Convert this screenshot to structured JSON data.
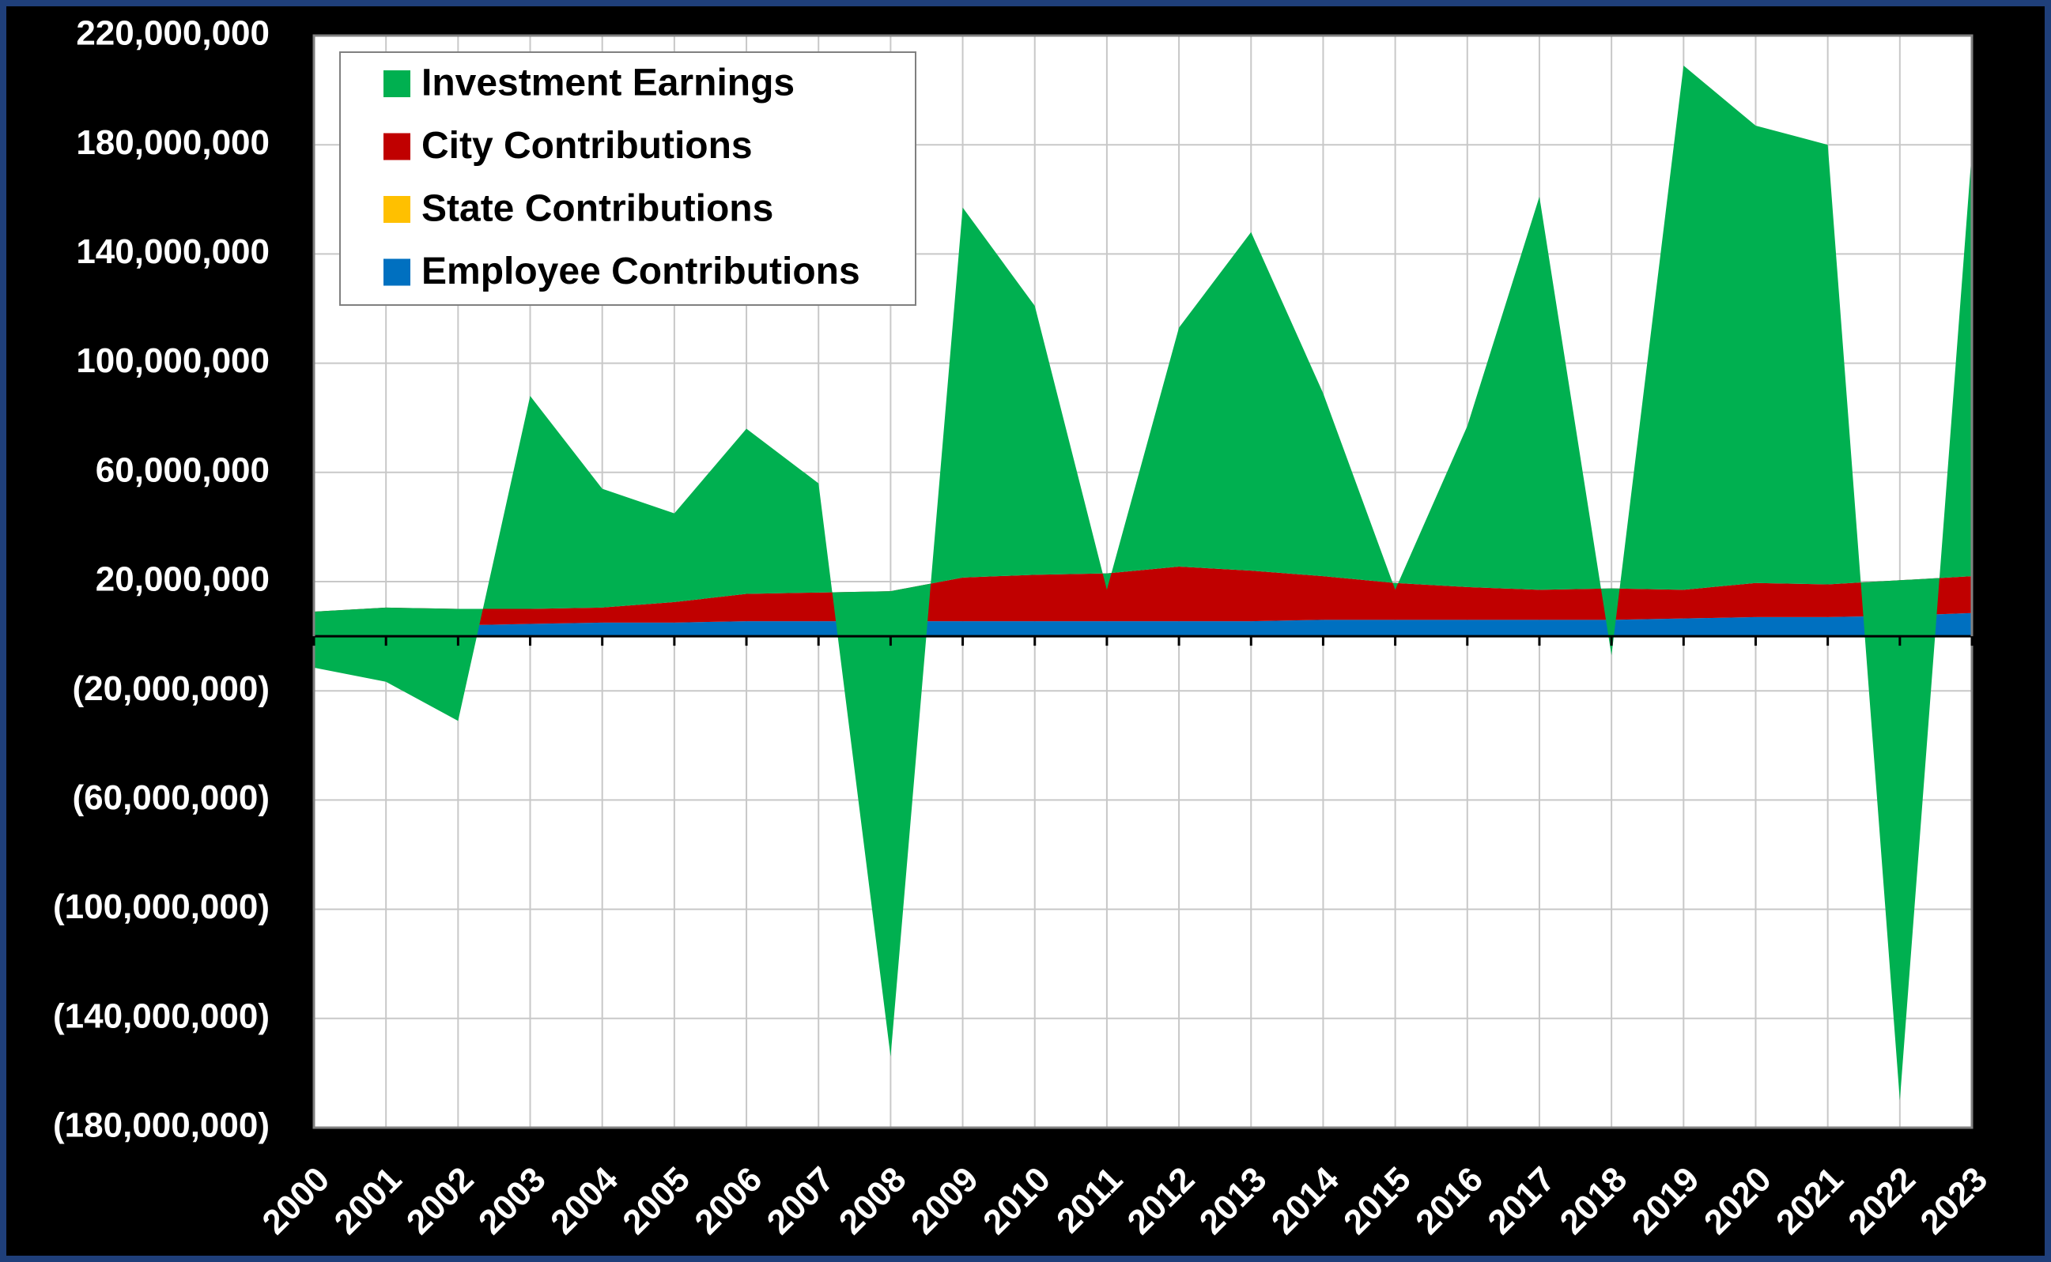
{
  "chart_data": {
    "type": "stacked-area",
    "categories": [
      "2000",
      "2001",
      "2002",
      "2003",
      "2004",
      "2005",
      "2006",
      "2007",
      "2008",
      "2009",
      "2010",
      "2011",
      "2012",
      "2013",
      "2014",
      "2015",
      "2016",
      "2017",
      "2018",
      "2019",
      "2020",
      "2021",
      "2022",
      "2023"
    ],
    "series": [
      {
        "name": "Investment Earnings",
        "color": "#00b050",
        "values": [
          -20500000,
          -27200000,
          -41000000,
          78000000,
          43500000,
          32500000,
          60500000,
          40000000,
          -170500000,
          135500000,
          98500000,
          -6000000,
          87500000,
          124000000,
          67000000,
          -2500000,
          59000000,
          144000000,
          -24500000,
          192000000,
          167500000,
          161000000,
          -190500000,
          156000000
        ]
      },
      {
        "name": "City Contributions",
        "color": "#c00000",
        "values": [
          5500000,
          6700000,
          6000000,
          5500000,
          5500000,
          7500000,
          10000000,
          10500000,
          11000000,
          16000000,
          17000000,
          17500000,
          20000000,
          18500000,
          16000000,
          13500000,
          12000000,
          11000000,
          11500000,
          10500000,
          12500000,
          12000000,
          13000000,
          13500000
        ]
      },
      {
        "name": "State Contributions",
        "color": "#ffc000",
        "values": [
          0,
          0,
          0,
          0,
          0,
          0,
          0,
          0,
          0,
          0,
          0,
          0,
          0,
          0,
          0,
          0,
          0,
          0,
          0,
          0,
          0,
          0,
          0,
          0
        ]
      },
      {
        "name": "Employee Contributions",
        "color": "#0070c0",
        "values": [
          3500000,
          3800000,
          4000000,
          4500000,
          5000000,
          5000000,
          5500000,
          5500000,
          5500000,
          5500000,
          5500000,
          5500000,
          5500000,
          5500000,
          6000000,
          6000000,
          6000000,
          6000000,
          6000000,
          6500000,
          7000000,
          7000000,
          7500000,
          8500000
        ]
      }
    ],
    "ylim": [
      -180000000,
      220000000
    ],
    "yticks": [
      {
        "value": 220000000,
        "label": "220,000,000"
      },
      {
        "value": 180000000,
        "label": "180,000,000"
      },
      {
        "value": 140000000,
        "label": "140,000,000"
      },
      {
        "value": 100000000,
        "label": "100,000,000"
      },
      {
        "value": 60000000,
        "label": "60,000,000"
      },
      {
        "value": 20000000,
        "label": "20,000,000"
      },
      {
        "value": -20000000,
        "label": "(20,000,000)"
      },
      {
        "value": -60000000,
        "label": "(60,000,000)"
      },
      {
        "value": -100000000,
        "label": "(100,000,000)"
      },
      {
        "value": -140000000,
        "label": "(140,000,000)"
      },
      {
        "value": -180000000,
        "label": "(180,000,000)"
      }
    ],
    "grid": true,
    "legend": "upper left"
  }
}
